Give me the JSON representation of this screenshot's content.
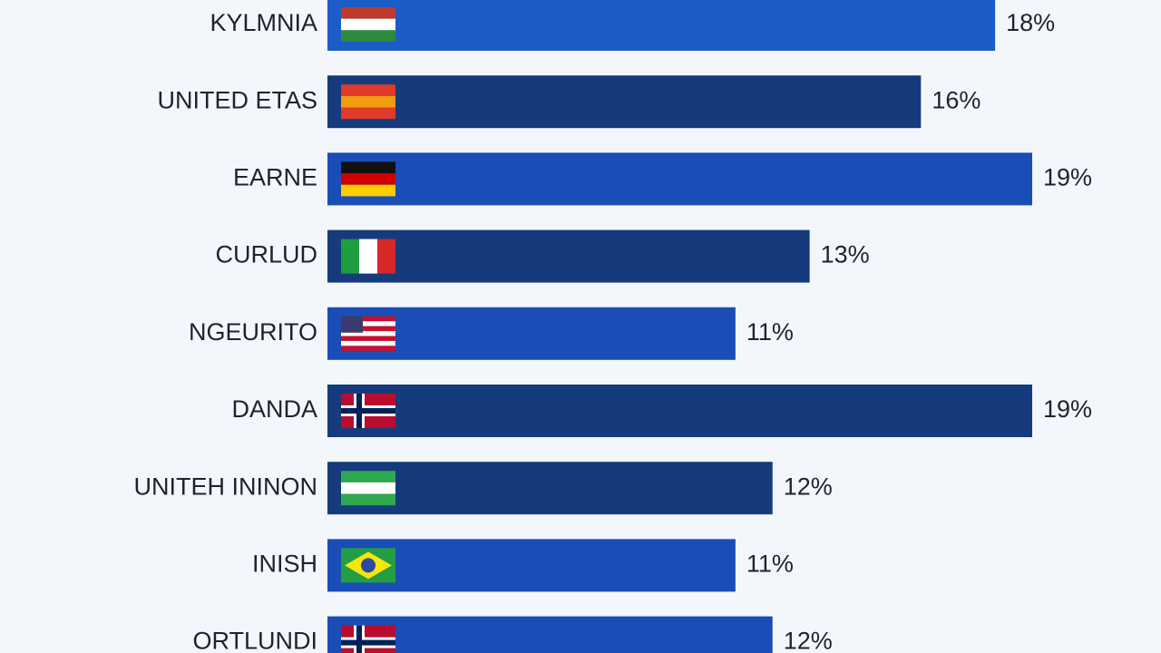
{
  "chart_data": {
    "type": "bar",
    "orientation": "horizontal",
    "categories": [
      "KYLMNIA",
      "UNITED ETAS",
      "EARNE",
      "CURLUD",
      "NGEURITO",
      "DANDA",
      "UNITEH ININON",
      "INISH",
      "ORTLUNDI"
    ],
    "values": [
      18,
      16,
      19,
      13,
      11,
      19,
      12,
      11,
      12
    ],
    "value_labels": [
      "18%",
      "16%",
      "19%",
      "13%",
      "11%",
      "19%",
      "12%",
      "11%",
      "12%"
    ],
    "colors": [
      "#1b5cc6",
      "#163b7c",
      "#1a4db5",
      "#163b7c",
      "#1a4db5",
      "#163b7c",
      "#163b7c",
      "#1a4db5",
      "#1a4db5"
    ]
  }
}
